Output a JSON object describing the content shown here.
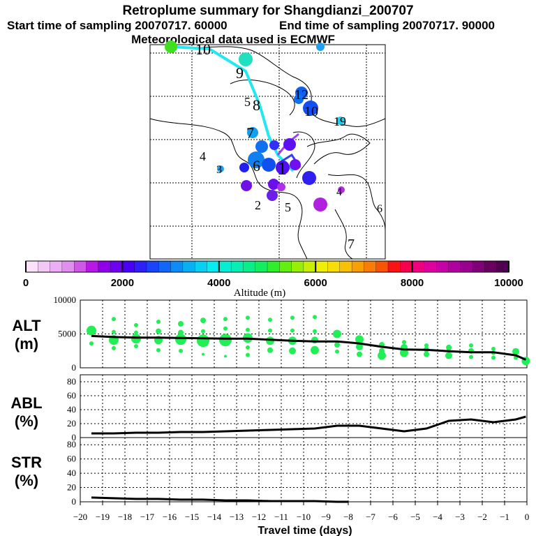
{
  "title": "Retroplume summary for Shangdianzi_200707",
  "subtitle_start": "Start time of sampling 20070717. 60000",
  "subtitle_end": "End time of sampling 20070717. 90000",
  "subtitle_met": "Meteorological data used is ECMWF",
  "colorbar": {
    "label": "Altitude (m)",
    "ticks": [
      "0",
      "2000",
      "4000",
      "6000",
      "8000",
      "10000"
    ],
    "range": [
      0,
      10000
    ],
    "colors": [
      "#fbe2fb",
      "#f3c8f7",
      "#ecaef4",
      "#e08ef0",
      "#cf58e8",
      "#b718e6",
      "#9100ea",
      "#7000f0",
      "#4b00f6",
      "#2e20f8",
      "#1a44f8",
      "#1068f6",
      "#0c8cf4",
      "#08b0f2",
      "#08d0f2",
      "#06ecf0",
      "#06eed2",
      "#06eeb4",
      "#0aee8a",
      "#14ee5e",
      "#30ee2c",
      "#64ee10",
      "#98ee06",
      "#c8ee06",
      "#eeee06",
      "#f8de06",
      "#f8c006",
      "#f89e06",
      "#f87c06",
      "#f85406",
      "#f81414",
      "#f80050",
      "#f00080",
      "#e000a0",
      "#c800a8",
      "#b000a0",
      "#980090",
      "#800078",
      "#680060",
      "#500050"
    ]
  },
  "chart_data": [
    {
      "type": "map-scatter",
      "name": "retroplume-map",
      "note": "Numbered labels are days before sampling; marker color encodes altitude (m)",
      "day_labels": [
        {
          "text": "10",
          "color": "#ffffff"
        },
        {
          "text": "9",
          "color": "#ffffff"
        },
        {
          "text": "8",
          "color": "#ffffff"
        },
        {
          "text": "7",
          "color": "#ffffff"
        },
        {
          "text": "6",
          "color": "#ffffff"
        },
        {
          "text": "5",
          "color": "#ffffff"
        },
        {
          "text": "4",
          "color": "#ffffff"
        },
        {
          "text": "3",
          "color": "#ffffff"
        },
        {
          "text": "2",
          "color": "#ffffff"
        },
        {
          "text": "1",
          "color": "#ffffff"
        },
        {
          "text": "12",
          "color": "#ffffff"
        },
        {
          "text": "10",
          "color": "#ffffff"
        },
        {
          "text": "19",
          "color": "#ffffff"
        },
        {
          "text": "4",
          "color": "#ffffff"
        },
        {
          "text": "5",
          "color": "#ffffff"
        },
        {
          "text": "6",
          "color": "#ffffff"
        },
        {
          "text": "7",
          "color": "#ffffff"
        }
      ]
    },
    {
      "type": "line+scatter",
      "name": "ALT",
      "ylabel": "ALT\n(m)",
      "ylim": [
        0,
        10000
      ],
      "yticks": [
        0,
        5000,
        10000
      ],
      "x": [
        -19.5,
        -18.5,
        -17.5,
        -16.5,
        -15.5,
        -14.5,
        -13.5,
        -12.5,
        -11.5,
        -10.5,
        -9.5,
        -8.5,
        -7.5,
        -6.5,
        -5.5,
        -4.5,
        -3.5,
        -2.5,
        -1.5,
        -0.5,
        -0.05
      ],
      "line_values": [
        4700,
        4550,
        4450,
        4450,
        4400,
        4350,
        4300,
        4300,
        4150,
        4000,
        3900,
        3900,
        3600,
        3100,
        2700,
        2650,
        2450,
        2300,
        2300,
        1850,
        1200
      ],
      "scatter": [
        {
          "x": -19.5,
          "y": 5500,
          "size": 7
        },
        {
          "x": -19.5,
          "y": 3600,
          "size": 3
        },
        {
          "x": -18.5,
          "y": 7200,
          "size": 3
        },
        {
          "x": -18.5,
          "y": 5300,
          "size": 3
        },
        {
          "x": -18.5,
          "y": 4100,
          "size": 7
        },
        {
          "x": -18.5,
          "y": 2900,
          "size": 3
        },
        {
          "x": -17.5,
          "y": 6300,
          "size": 3
        },
        {
          "x": -17.5,
          "y": 5200,
          "size": 3
        },
        {
          "x": -17.5,
          "y": 4300,
          "size": 7
        },
        {
          "x": -17.5,
          "y": 3200,
          "size": 3
        },
        {
          "x": -16.5,
          "y": 6800,
          "size": 3
        },
        {
          "x": -16.5,
          "y": 5400,
          "size": 4
        },
        {
          "x": -16.5,
          "y": 4100,
          "size": 6
        },
        {
          "x": -16.5,
          "y": 2600,
          "size": 3
        },
        {
          "x": -15.5,
          "y": 6500,
          "size": 4
        },
        {
          "x": -15.5,
          "y": 5200,
          "size": 4
        },
        {
          "x": -15.5,
          "y": 4200,
          "size": 8
        },
        {
          "x": -15.5,
          "y": 2500,
          "size": 3
        },
        {
          "x": -14.5,
          "y": 7000,
          "size": 4
        },
        {
          "x": -14.5,
          "y": 5400,
          "size": 3
        },
        {
          "x": -14.5,
          "y": 4000,
          "size": 9
        },
        {
          "x": -14.5,
          "y": 2000,
          "size": 2
        },
        {
          "x": -13.5,
          "y": 7200,
          "size": 3
        },
        {
          "x": -13.5,
          "y": 5800,
          "size": 3
        },
        {
          "x": -13.5,
          "y": 4100,
          "size": 9
        },
        {
          "x": -13.5,
          "y": 1700,
          "size": 2
        },
        {
          "x": -12.5,
          "y": 7400,
          "size": 3
        },
        {
          "x": -12.5,
          "y": 5600,
          "size": 3
        },
        {
          "x": -12.5,
          "y": 4400,
          "size": 7
        },
        {
          "x": -12.5,
          "y": 3000,
          "size": 3
        },
        {
          "x": -12.5,
          "y": 1900,
          "size": 3
        },
        {
          "x": -11.5,
          "y": 7100,
          "size": 3
        },
        {
          "x": -11.5,
          "y": 5500,
          "size": 3
        },
        {
          "x": -11.5,
          "y": 4000,
          "size": 6
        },
        {
          "x": -11.5,
          "y": 2600,
          "size": 4
        },
        {
          "x": -10.5,
          "y": 7400,
          "size": 3
        },
        {
          "x": -10.5,
          "y": 5500,
          "size": 3
        },
        {
          "x": -10.5,
          "y": 4000,
          "size": 6
        },
        {
          "x": -10.5,
          "y": 2500,
          "size": 5
        },
        {
          "x": -9.5,
          "y": 7500,
          "size": 3
        },
        {
          "x": -9.5,
          "y": 5400,
          "size": 3
        },
        {
          "x": -9.5,
          "y": 4100,
          "size": 5
        },
        {
          "x": -9.5,
          "y": 2600,
          "size": 6
        },
        {
          "x": -8.5,
          "y": 5000,
          "size": 6
        },
        {
          "x": -8.5,
          "y": 3400,
          "size": 4
        },
        {
          "x": -8.5,
          "y": 2400,
          "size": 3
        },
        {
          "x": -7.5,
          "y": 4200,
          "size": 6
        },
        {
          "x": -7.5,
          "y": 3100,
          "size": 5
        },
        {
          "x": -7.5,
          "y": 2000,
          "size": 4
        },
        {
          "x": -6.5,
          "y": 3400,
          "size": 4
        },
        {
          "x": -6.5,
          "y": 2500,
          "size": 4
        },
        {
          "x": -6.5,
          "y": 1800,
          "size": 6
        },
        {
          "x": -5.5,
          "y": 3800,
          "size": 3
        },
        {
          "x": -5.5,
          "y": 3000,
          "size": 5
        },
        {
          "x": -5.5,
          "y": 2200,
          "size": 6
        },
        {
          "x": -4.5,
          "y": 3300,
          "size": 3
        },
        {
          "x": -4.5,
          "y": 2700,
          "size": 4
        },
        {
          "x": -4.5,
          "y": 2000,
          "size": 4
        },
        {
          "x": -3.5,
          "y": 3000,
          "size": 4
        },
        {
          "x": -3.5,
          "y": 2600,
          "size": 3
        },
        {
          "x": -3.5,
          "y": 1800,
          "size": 5
        },
        {
          "x": -2.5,
          "y": 3300,
          "size": 3
        },
        {
          "x": -2.5,
          "y": 2500,
          "size": 4
        },
        {
          "x": -2.5,
          "y": 1600,
          "size": 3
        },
        {
          "x": -1.5,
          "y": 2800,
          "size": 3
        },
        {
          "x": -1.5,
          "y": 2200,
          "size": 3
        },
        {
          "x": -1.5,
          "y": 1500,
          "size": 3
        },
        {
          "x": -0.5,
          "y": 2400,
          "size": 5
        },
        {
          "x": -0.5,
          "y": 1500,
          "size": 3
        },
        {
          "x": -0.05,
          "y": 1000,
          "size": 6
        }
      ]
    },
    {
      "type": "line",
      "name": "ABL",
      "ylabel": "ABL\n(%)",
      "ylim": [
        0,
        90
      ],
      "yticks": [
        0,
        20,
        40,
        60,
        80
      ],
      "x": [
        -19.5,
        -18.5,
        -17.5,
        -16.5,
        -15.5,
        -14.5,
        -13.5,
        -12.5,
        -11.5,
        -10.5,
        -9.5,
        -8.5,
        -7.5,
        -6.5,
        -5.5,
        -4.5,
        -3.5,
        -2.5,
        -1.5,
        -0.5,
        -0.05
      ],
      "values": [
        6,
        6,
        7,
        7,
        8,
        8,
        9,
        10,
        11,
        12,
        13,
        17,
        17,
        13,
        9,
        13,
        24,
        26,
        22,
        26,
        30
      ]
    },
    {
      "type": "line",
      "name": "STR",
      "ylabel": "STR\n(%)",
      "ylim": [
        0,
        90
      ],
      "yticks": [
        0,
        20,
        40,
        60,
        80
      ],
      "xlabel": "Travel time (days)",
      "xlim": [
        -20,
        0
      ],
      "xticks": [
        -20,
        -19,
        -18,
        -17,
        -16,
        -15,
        -14,
        -13,
        -12,
        -11,
        -10,
        -9,
        -8,
        -7,
        -6,
        -5,
        -4,
        -3,
        -2,
        -1,
        0
      ],
      "x": [
        -19.5,
        -18.5,
        -17.5,
        -16.5,
        -15.5,
        -14.5,
        -13.5,
        -12.5,
        -11.5,
        -10.5,
        -9.5,
        -8.5,
        -8.0
      ],
      "values": [
        6,
        5,
        4,
        4,
        3,
        3,
        2,
        2,
        1,
        1,
        1,
        0,
        0
      ]
    }
  ]
}
